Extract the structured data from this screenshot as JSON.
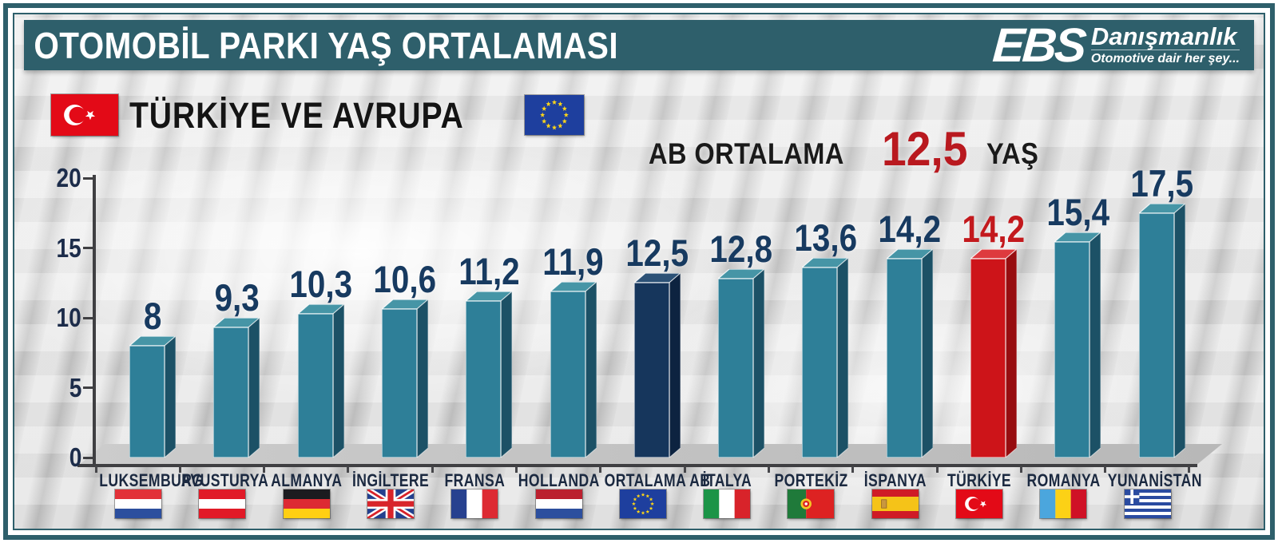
{
  "header": {
    "title": "OTOMOBİL PARKI YAŞ ORTALAMASI",
    "logo": {
      "brand": "EBS",
      "brand_suffix": "Danışmanlık",
      "tagline": "Otomotive dair her şey..."
    }
  },
  "subtitle": {
    "label": "TÜRKİYE VE AVRUPA",
    "left_flag": "turkey-flag",
    "right_flag": "eu-flag"
  },
  "annotation": {
    "prefix": "AB ORTALAMA",
    "value": "12,5",
    "suffix": "YAŞ"
  },
  "chart_data": {
    "type": "bar",
    "title": "OTOMOBİL PARKI YAŞ ORTALAMASI",
    "subtitle": "TÜRKİYE VE AVRUPA",
    "annotation": "AB ORTALAMA 12,5 YAŞ",
    "ylabel": "",
    "xlabel": "",
    "ylim": [
      0,
      20
    ],
    "yticks": [
      0,
      5,
      10,
      15,
      20
    ],
    "grid": false,
    "legend": "none",
    "categories": [
      "LUKSEMBURG",
      "AVUSTURYA",
      "ALMANYA",
      "İNGİLTERE",
      "FRANSA",
      "HOLLANDA",
      "ORTALAMA AB",
      "İTALYA",
      "PORTEKİZ",
      "İSPANYA",
      "TÜRKİYE",
      "ROMANYA",
      "YUNANİSTAN"
    ],
    "values": [
      8,
      9.3,
      10.3,
      10.6,
      11.2,
      11.9,
      12.5,
      12.8,
      13.6,
      14.2,
      14.2,
      15.4,
      17.5
    ],
    "value_labels": [
      "8",
      "9,3",
      "10,3",
      "10,6",
      "11,2",
      "11,9",
      "12,5",
      "12,8",
      "13,6",
      "14,2",
      "14,2",
      "15,4",
      "17,5"
    ],
    "flags": [
      "luxembourg",
      "austria",
      "germany",
      "united-kingdom",
      "france",
      "netherlands",
      "european-union",
      "italy",
      "portugal",
      "spain",
      "turkey",
      "romania",
      "greece"
    ],
    "bar_styles": [
      "teal",
      "teal",
      "teal",
      "teal",
      "teal",
      "teal",
      "navy",
      "teal",
      "teal",
      "teal",
      "red",
      "teal",
      "teal"
    ],
    "colors": {
      "banner": "#2e5f6b",
      "teal": "#2e7f98",
      "teal_side": "#1c5166",
      "teal_top": "#4695a6",
      "navy": "#16365c",
      "navy_side": "#0d2340",
      "navy_top": "#2c5176",
      "red": "#cd1419",
      "red_side": "#970d10",
      "red_top": "#de3a3e",
      "value_label": "#173a60",
      "value_label_red": "#c3191d",
      "axis": "#3f3f42",
      "category_label": "#1b2940",
      "annotation_red": "#b9191f"
    }
  }
}
